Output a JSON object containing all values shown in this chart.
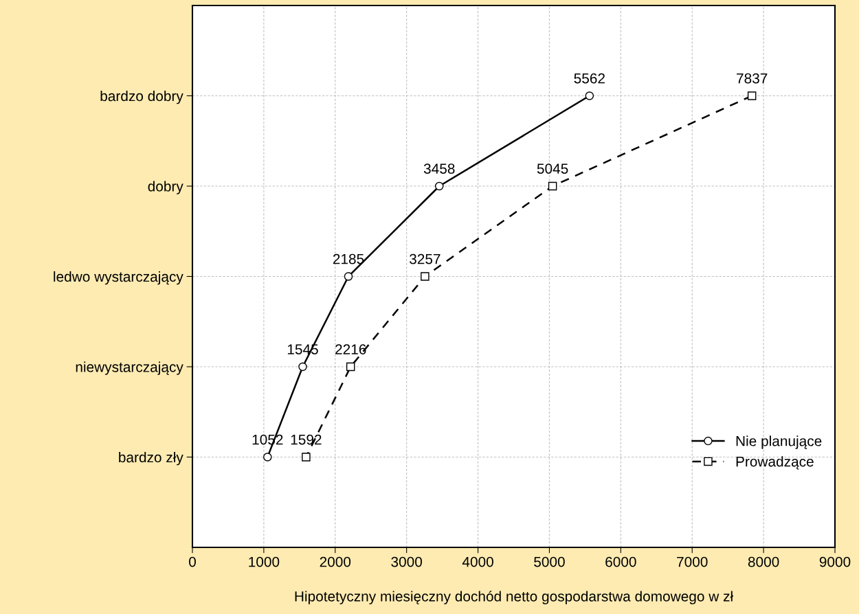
{
  "chart_data": {
    "type": "line",
    "orientation": "horizontal",
    "categories": [
      "bardzo dobry",
      "dobry",
      "ledwo wystarczający",
      "niewystarczający",
      "bardzo zły"
    ],
    "series": [
      {
        "name": "Nie planujące",
        "color": "#000000",
        "marker": "circle",
        "line_style": "solid",
        "values": [
          5562,
          3458,
          2185,
          1545,
          1052
        ]
      },
      {
        "name": "Prowadzące",
        "color": "#000000",
        "marker": "square",
        "line_style": "dashed",
        "values": [
          7837,
          5045,
          3257,
          2216,
          1592
        ]
      }
    ],
    "xlabel": "Hipotetyczny miesięczny dochód netto gospodarstwa domowego w zł",
    "xlim": [
      0,
      9000
    ],
    "xticks": [
      0,
      1000,
      2000,
      3000,
      4000,
      5000,
      6000,
      7000,
      8000,
      9000
    ],
    "data_labels": true,
    "grid": true,
    "legend": "bottom right"
  }
}
